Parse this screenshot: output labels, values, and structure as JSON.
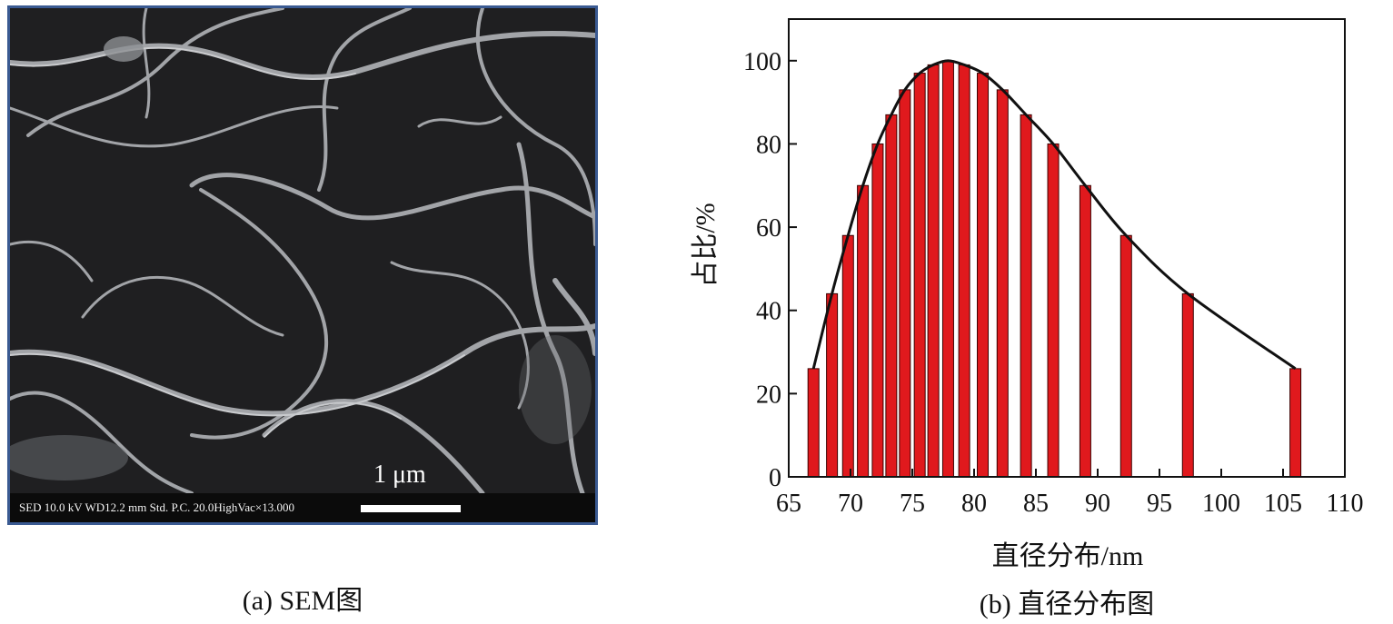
{
  "panel_a": {
    "caption": "(a) SEM图",
    "info_text": "SED 10.0 kV WD12.2 mm Std. P.C. 20.0HighVac×13.000",
    "scale_label": "1 μm"
  },
  "panel_b": {
    "caption": "(b) 直径分布图"
  },
  "chart_data": {
    "type": "bar",
    "xlabel": "直径分布/nm",
    "ylabel": "占比/%",
    "xlim": [
      65,
      110
    ],
    "ylim": [
      0,
      110
    ],
    "x_ticks": [
      65,
      70,
      75,
      80,
      85,
      90,
      95,
      100,
      105,
      110
    ],
    "y_ticks": [
      0,
      20,
      40,
      60,
      80,
      100
    ],
    "grid": false,
    "bar_color": "#e0191d",
    "curve_color": "#111111",
    "bars": [
      {
        "x": 67.0,
        "y": 26
      },
      {
        "x": 68.5,
        "y": 44
      },
      {
        "x": 69.8,
        "y": 58
      },
      {
        "x": 71.0,
        "y": 70
      },
      {
        "x": 72.2,
        "y": 80
      },
      {
        "x": 73.3,
        "y": 87
      },
      {
        "x": 74.4,
        "y": 93
      },
      {
        "x": 75.6,
        "y": 97
      },
      {
        "x": 76.7,
        "y": 99
      },
      {
        "x": 77.9,
        "y": 100
      },
      {
        "x": 79.2,
        "y": 99
      },
      {
        "x": 80.7,
        "y": 97
      },
      {
        "x": 82.3,
        "y": 93
      },
      {
        "x": 84.2,
        "y": 87
      },
      {
        "x": 86.4,
        "y": 80
      },
      {
        "x": 89.0,
        "y": 70
      },
      {
        "x": 92.3,
        "y": 58
      },
      {
        "x": 97.3,
        "y": 44
      },
      {
        "x": 106.0,
        "y": 26
      }
    ]
  }
}
